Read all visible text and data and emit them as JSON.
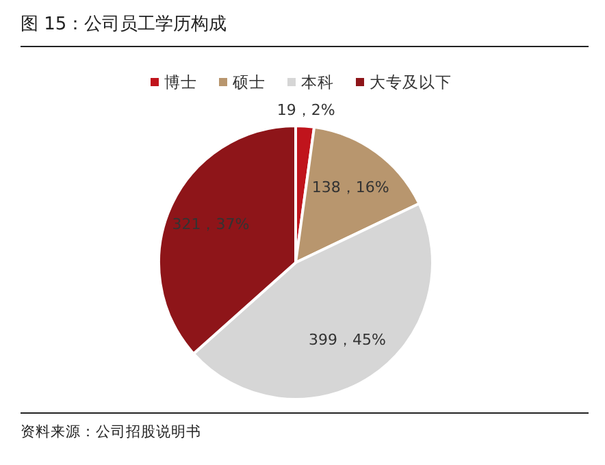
{
  "chart_data": {
    "type": "pie",
    "title": "图 15：公司员工学历构成",
    "categories": [
      "博士",
      "硕士",
      "本科",
      "大专及以下"
    ],
    "values": [
      19,
      138,
      399,
      321
    ],
    "colors": [
      "#c0141c",
      "#b8966e",
      "#d6d6d6",
      "#8e1519"
    ],
    "value_labels": [
      "19，2%",
      "138，16%",
      "399，45%",
      "321，37%"
    ],
    "legend": "top",
    "annotations": [
      "资料来源：公司招股说明书"
    ]
  }
}
